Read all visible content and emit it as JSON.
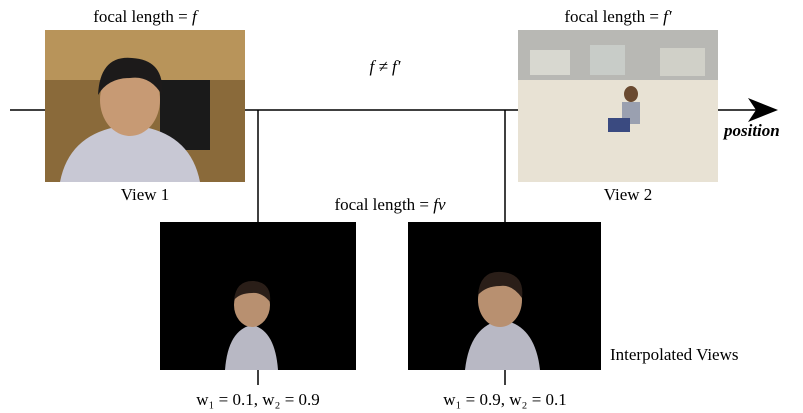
{
  "view1": {
    "focal_label": "focal length =",
    "focal_symbol": "f",
    "caption": "View 1"
  },
  "view2": {
    "focal_label": "focal length =",
    "focal_symbol": "f′",
    "caption": "View 2"
  },
  "relation": "f ≠ f′",
  "axis_label": "position",
  "interpolated": {
    "focal_label": "focal length =",
    "focal_symbol": "fv",
    "caption": "Interpolated Views",
    "weights": [
      "w₁ = 0.1, w₂ = 0.9",
      "w₁ = 0.9, w₂ = 0.1"
    ]
  }
}
